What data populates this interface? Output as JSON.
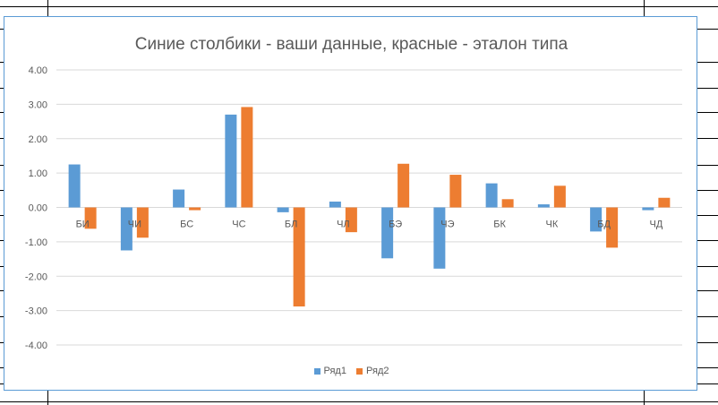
{
  "chart_data": {
    "type": "bar",
    "title": "Синие столбики - ваши данные, красные - эталон типа",
    "categories": [
      "БИ",
      "ЧИ",
      "БС",
      "ЧС",
      "БЛ",
      "ЧЛ",
      "БЭ",
      "ЧЭ",
      "БК",
      "ЧК",
      "БД",
      "ЧД"
    ],
    "series": [
      {
        "name": "Ряд1",
        "color": "#5b9bd5",
        "values": [
          1.25,
          -1.25,
          0.52,
          2.7,
          -0.14,
          0.17,
          -1.48,
          -1.78,
          0.7,
          0.09,
          -0.7,
          -0.08
        ]
      },
      {
        "name": "Ряд2",
        "color": "#ed7d31",
        "values": [
          -0.62,
          -0.88,
          -0.08,
          2.92,
          -2.88,
          -0.72,
          1.27,
          0.95,
          0.24,
          0.63,
          -1.17,
          0.28
        ]
      }
    ],
    "yticks": [
      "4.00",
      "3.00",
      "2.00",
      "1.00",
      "0.00",
      "-1.00",
      "-2.00",
      "-3.00",
      "-4.00"
    ],
    "ylim": [
      -4,
      4
    ],
    "grid": true,
    "legend_position": "bottom"
  }
}
